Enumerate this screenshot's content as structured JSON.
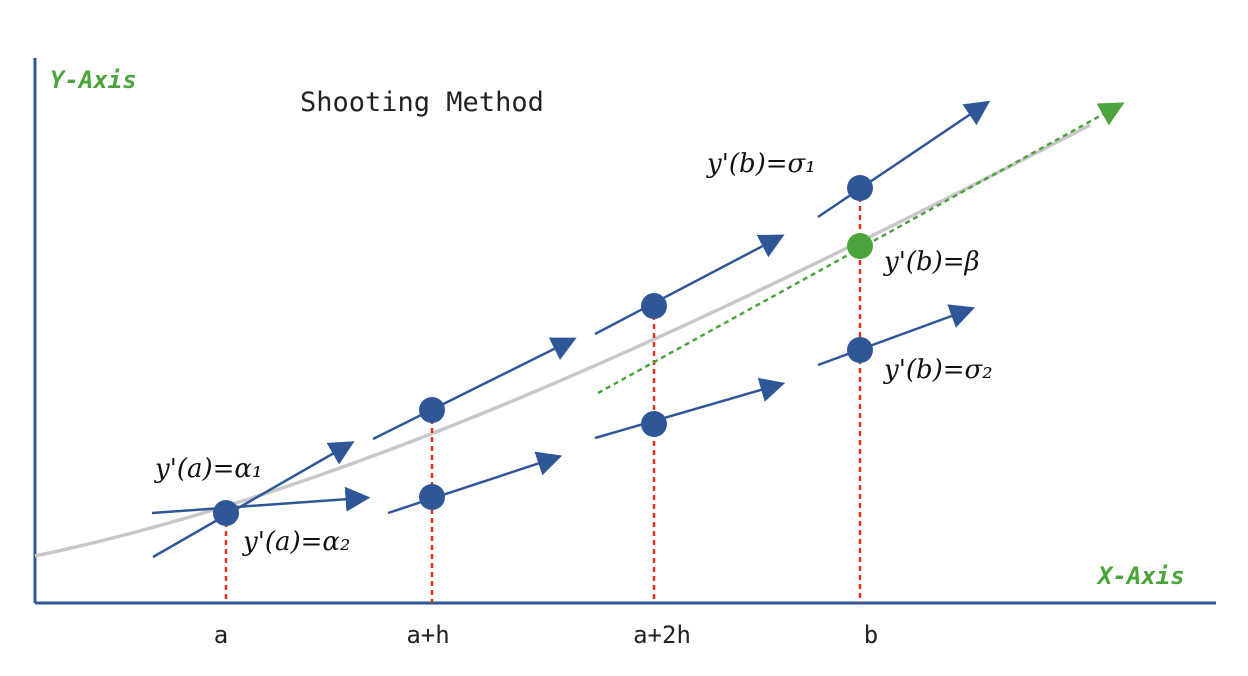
{
  "title": "Shooting Method",
  "axes": {
    "y_label": "Y-Axis",
    "x_label": "X-Axis",
    "axis_color": "#2f5797",
    "label_color": "#4ca43c"
  },
  "ticks": [
    "a",
    "a+h",
    "a+2h",
    "b"
  ],
  "labels": {
    "alpha1": "y'(a)=α₁",
    "alpha2": "y'(a)=α₂",
    "sigma1": "y'(b)=σ₁",
    "beta": "y'(b)=β",
    "sigma2": "y'(b)=σ₂"
  },
  "colors": {
    "shot": "#2f5797",
    "target": "#4ca43c",
    "guide": "#e03020",
    "solution_curve": "#c8c8c8"
  }
}
